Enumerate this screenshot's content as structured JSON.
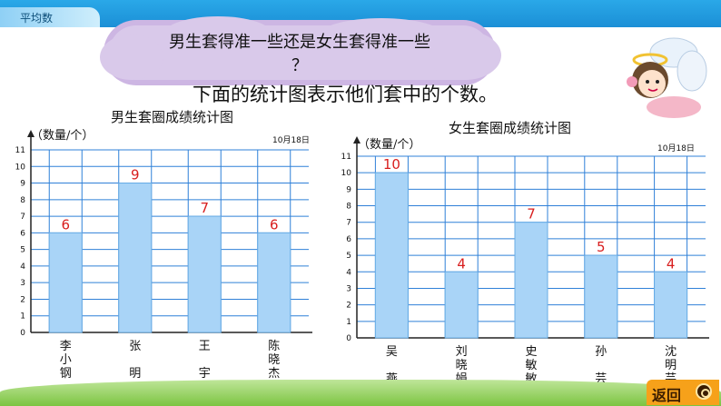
{
  "header": {
    "section_label": "平均数"
  },
  "question": {
    "line1": "男生套得准一些还是女生套得准一些",
    "line2": "？"
  },
  "subtitle": "下面的统计图表示他们套中的个数。",
  "colors": {
    "bar": "#a9d4f7",
    "bar_stroke": "#6aaee6",
    "grid": "#2f80d8",
    "label": "#d81e1e",
    "accent": "#1b8fd6"
  },
  "footer": {
    "back_label": "返回",
    "back_icon": "search-icon"
  },
  "chart_data": [
    {
      "type": "bar",
      "title": "男生套圈成绩统计图",
      "unit_label": "（数量/个）",
      "date": "10月18日",
      "categories": [
        "李小钢",
        "张明",
        "王宇",
        "陈晓杰"
      ],
      "values": [
        6,
        9,
        7,
        6
      ],
      "ylim": [
        0,
        11
      ],
      "yticks": [
        0,
        1,
        2,
        3,
        4,
        5,
        6,
        7,
        8,
        9,
        10,
        11
      ],
      "grid": true
    },
    {
      "type": "bar",
      "title": "女生套圈成绩统计图",
      "unit_label": "（数量/个）",
      "date": "10月18日",
      "categories": [
        "吴燕",
        "刘晓娟",
        "史敏敏",
        "孙芸",
        "沈明芸"
      ],
      "values": [
        10,
        4,
        7,
        5,
        4
      ],
      "ylim": [
        0,
        11
      ],
      "yticks": [
        0,
        1,
        2,
        3,
        4,
        5,
        6,
        7,
        8,
        9,
        10,
        11
      ],
      "grid": true
    }
  ]
}
